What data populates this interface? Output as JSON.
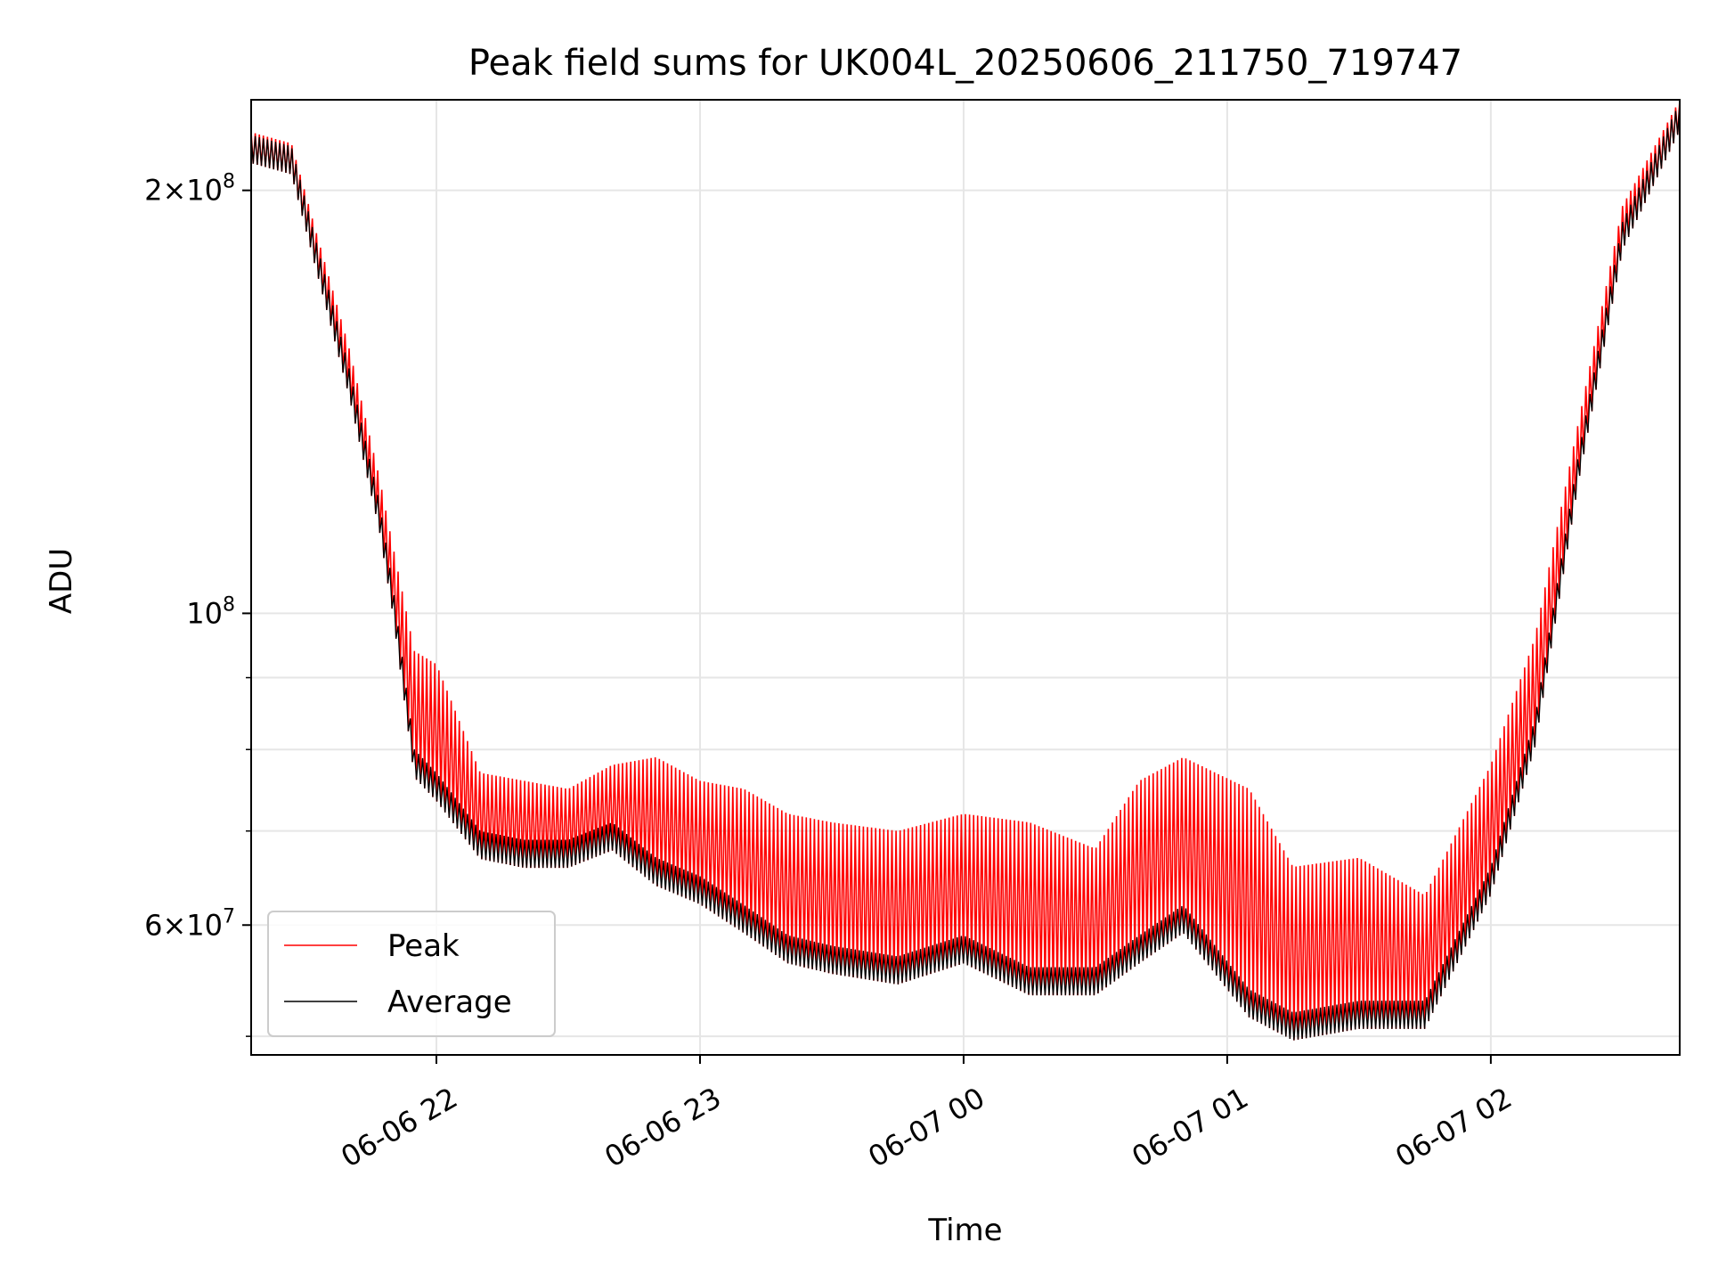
{
  "chart_data": {
    "type": "line",
    "title": "Peak field sums for UK004L_20250606_211750_719747",
    "xlabel": "Time",
    "ylabel": "ADU",
    "x_range": [
      "2025-06-06 21:17:50",
      "2025-06-07 02:43:00"
    ],
    "xticks": [
      {
        "t": "2025-06-06 22:00",
        "label": "06-06 22"
      },
      {
        "t": "2025-06-06 23:00",
        "label": "06-06 23"
      },
      {
        "t": "2025-06-07 00:00",
        "label": "06-07 00"
      },
      {
        "t": "2025-06-07 01:00",
        "label": "06-07 01"
      },
      {
        "t": "2025-06-07 02:00",
        "label": "06-07 02"
      }
    ],
    "y_scale": "log",
    "ylim": [
      48500000,
      232000000
    ],
    "yticks_major": [
      {
        "value": 200000000,
        "label": "2 × 10^8",
        "mant": "2",
        "exp": "8"
      },
      {
        "value": 100000000,
        "label": "10^8",
        "mant": "",
        "exp": "8"
      },
      {
        "value": 60000000,
        "label": "6 × 10^7",
        "mant": "6",
        "exp": "7"
      }
    ],
    "yticks_minor": [
      50000000,
      70000000,
      80000000,
      90000000
    ],
    "grid": true,
    "legend": {
      "position": "lower-left",
      "entries": [
        "Peak",
        "Average"
      ]
    },
    "series": [
      {
        "name": "Peak",
        "color": "#ff0000",
        "x": [
          "2025-06-06 21:17:50",
          "2025-06-06 21:27",
          "2025-06-06 21:33",
          "2025-06-06 21:40",
          "2025-06-06 21:47",
          "2025-06-06 21:50",
          "2025-06-06 21:55",
          "2025-06-06 22:00",
          "2025-06-06 22:10",
          "2025-06-06 22:20",
          "2025-06-06 22:30",
          "2025-06-06 22:40",
          "2025-06-06 22:50",
          "2025-06-06 23:00",
          "2025-06-06 23:10",
          "2025-06-06 23:20",
          "2025-06-06 23:30",
          "2025-06-06 23:45",
          "2025-06-07 00:00",
          "2025-06-07 00:15",
          "2025-06-07 00:30",
          "2025-06-07 00:40",
          "2025-06-07 00:50",
          "2025-06-07 01:05",
          "2025-06-07 01:15",
          "2025-06-07 01:30",
          "2025-06-07 01:45",
          "2025-06-07 02:00",
          "2025-06-07 02:10",
          "2025-06-07 02:20",
          "2025-06-07 02:30",
          "2025-06-07 02:43"
        ],
        "values": [
          220000000,
          216000000,
          185000000,
          155000000,
          125000000,
          112000000,
          94000000,
          92000000,
          77000000,
          76000000,
          75000000,
          78000000,
          79000000,
          76000000,
          75000000,
          72000000,
          71000000,
          70000000,
          72000000,
          71000000,
          68000000,
          76000000,
          79000000,
          75000000,
          66000000,
          67000000,
          63000000,
          78000000,
          96000000,
          137000000,
          195000000,
          232000000
        ]
      },
      {
        "name": "Average",
        "color": "#000000",
        "x": [
          "2025-06-06 21:17:50",
          "2025-06-06 21:27",
          "2025-06-06 21:33",
          "2025-06-06 21:40",
          "2025-06-06 21:47",
          "2025-06-06 21:50",
          "2025-06-06 21:55",
          "2025-06-06 22:00",
          "2025-06-06 22:10",
          "2025-06-06 22:20",
          "2025-06-06 22:30",
          "2025-06-06 22:40",
          "2025-06-06 22:50",
          "2025-06-06 23:00",
          "2025-06-06 23:10",
          "2025-06-06 23:20",
          "2025-06-06 23:30",
          "2025-06-06 23:45",
          "2025-06-07 00:00",
          "2025-06-07 00:15",
          "2025-06-07 00:30",
          "2025-06-07 00:40",
          "2025-06-07 00:50",
          "2025-06-07 01:05",
          "2025-06-07 01:15",
          "2025-06-07 01:30",
          "2025-06-07 01:45",
          "2025-06-07 02:00",
          "2025-06-07 02:10",
          "2025-06-07 02:20",
          "2025-06-07 02:30",
          "2025-06-07 02:43"
        ],
        "values": [
          219000000,
          215000000,
          182000000,
          150000000,
          120000000,
          105000000,
          80000000,
          77000000,
          70000000,
          69000000,
          69000000,
          71000000,
          67000000,
          65000000,
          62000000,
          59000000,
          58000000,
          57000000,
          59000000,
          56000000,
          56000000,
          59000000,
          62000000,
          54000000,
          52000000,
          53000000,
          53000000,
          66000000,
          84000000,
          130000000,
          190000000,
          231000000
        ]
      }
    ]
  }
}
